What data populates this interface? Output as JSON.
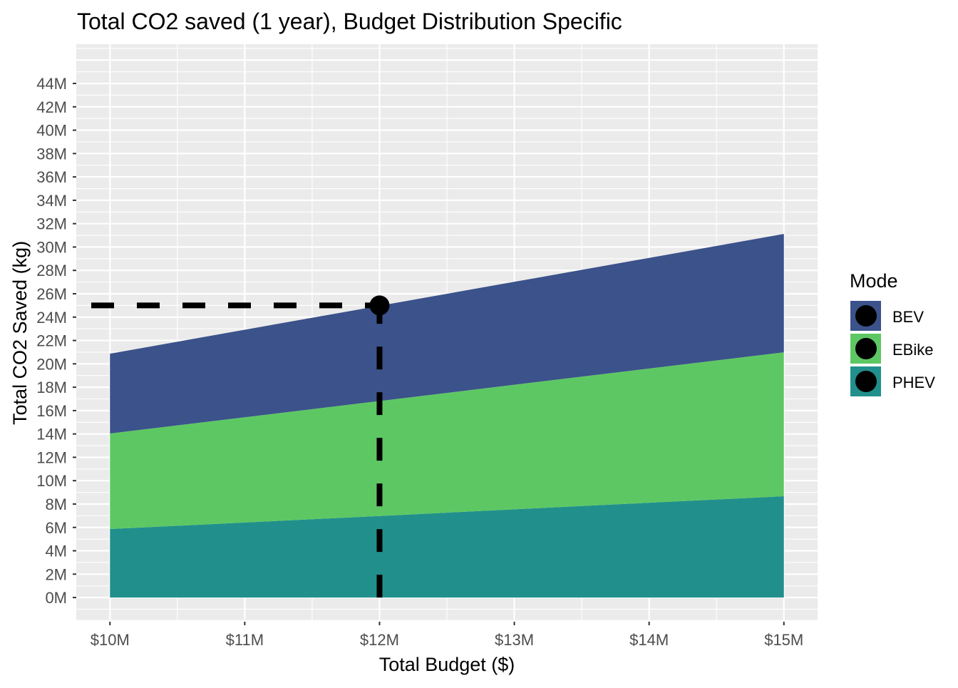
{
  "chart_data": {
    "type": "area",
    "stacked": true,
    "title": "Total CO2 saved (1 year), Budget Distribution Specific",
    "xlabel": "Total Budget ($)",
    "ylabel": "Total CO2 Saved (kg)",
    "x": [
      10,
      11,
      12,
      13,
      14,
      15
    ],
    "x_ticks": [
      10,
      11,
      12,
      13,
      14,
      15
    ],
    "x_tick_labels": [
      "$10M",
      "$11M",
      "$12M",
      "$13M",
      "$14M",
      "$15M"
    ],
    "y_ticks": [
      0,
      2,
      4,
      6,
      8,
      10,
      12,
      14,
      16,
      18,
      20,
      22,
      24,
      26,
      28,
      30,
      32,
      34,
      36,
      38,
      40,
      42,
      44
    ],
    "y_tick_labels": [
      "0M",
      "2M",
      "4M",
      "6M",
      "8M",
      "10M",
      "12M",
      "14M",
      "16M",
      "18M",
      "20M",
      "22M",
      "24M",
      "26M",
      "28M",
      "30M",
      "32M",
      "34M",
      "36M",
      "38M",
      "40M",
      "42M",
      "44M"
    ],
    "xlim": [
      9.75,
      15.25
    ],
    "ylim": [
      -2.07,
      47.36
    ],
    "units": "millions",
    "grid": true,
    "series": [
      {
        "name": "PHEV",
        "color": "#21908C",
        "values": [
          5.86,
          6.42,
          6.98,
          7.55,
          8.11,
          8.67
        ]
      },
      {
        "name": "EBike",
        "color": "#5DC863",
        "values": [
          8.18,
          9.01,
          9.84,
          10.66,
          11.49,
          12.32
        ]
      },
      {
        "name": "BEV",
        "color": "#3B528B",
        "values": [
          6.83,
          7.49,
          8.15,
          8.81,
          9.47,
          10.13
        ]
      }
    ],
    "highlight_point": {
      "x": 12,
      "y": 25
    },
    "legend": {
      "title": "Mode",
      "placement": "right",
      "entries": [
        {
          "label": "BEV",
          "color": "#3B528B"
        },
        {
          "label": "EBike",
          "color": "#5DC863"
        },
        {
          "label": "PHEV",
          "color": "#21908C"
        }
      ]
    }
  }
}
